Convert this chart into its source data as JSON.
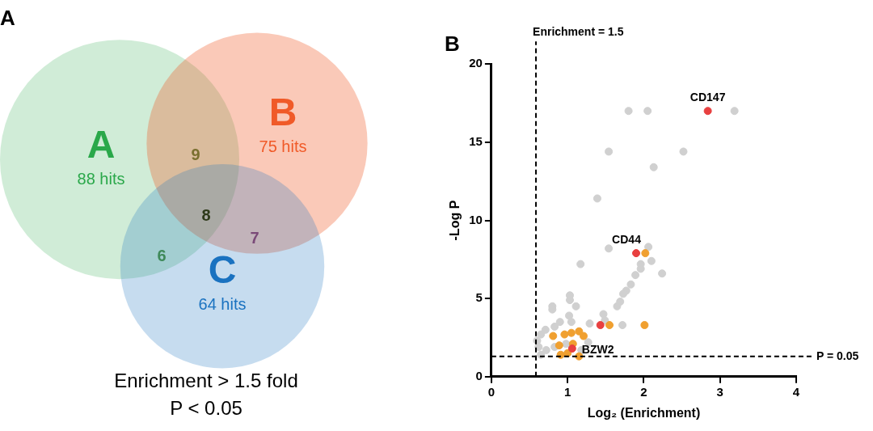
{
  "chart_data": [
    {
      "type": "other",
      "title": "A",
      "categories": [
        "A",
        "B",
        "C"
      ],
      "values": [
        88,
        75,
        64
      ],
      "value_labels": [
        "88 hits",
        "75 hits",
        "64 hits"
      ],
      "colors": [
        "#2aa84a",
        "#f05a28",
        "#1a72c0"
      ],
      "annotations": [
        "9",
        "6",
        "7",
        "8",
        "Enrichment > 1.5 fold",
        "P < 0.05"
      ]
    },
    {
      "type": "scatter",
      "title": "B",
      "xlabel": "Log₂ (Enrichment)",
      "ylabel": "-Log P",
      "xlim": [
        0,
        4
      ],
      "xticks": [
        0,
        1,
        2,
        3,
        4
      ],
      "ylim": [
        0,
        20
      ],
      "yticks": [
        0,
        5,
        10,
        15,
        20
      ],
      "grid": false,
      "legend": false,
      "marker": "circle",
      "series": [
        {
          "color": "#d0d0d0",
          "x": [
            1.8,
            2.05,
            3.19,
            1.54,
            2.52,
            2.13,
            1.39,
            1.54,
            2.06,
            2.1,
            1.17,
            1.96,
            1.96,
            1.89,
            2.24,
            1.83,
            1.77,
            1.73,
            1.69,
            1.65,
            1.03,
            1.11,
            1.03,
            0.8,
            0.8,
            1.47,
            1.49,
            1.02,
            1.05,
            1.29,
            1.72,
            0.9,
            0.83,
            0.71,
            0.65,
            0.6,
            0.62,
            0.65,
            0.72,
            0.83,
            0.98,
            1.27,
            1.18
          ],
          "values": [
            17.0,
            17.0,
            17.0,
            14.4,
            14.4,
            13.4,
            11.4,
            8.2,
            8.3,
            7.4,
            7.2,
            7.2,
            6.9,
            6.5,
            6.6,
            5.9,
            5.5,
            5.3,
            4.8,
            4.5,
            5.2,
            4.5,
            4.9,
            4.5,
            4.3,
            4.0,
            3.6,
            3.9,
            3.5,
            3.4,
            3.3,
            3.5,
            3.2,
            3.0,
            2.7,
            2.3,
            1.9,
            1.4,
            1.7,
            1.9,
            2.1,
            2.2,
            1.7
          ]
        },
        {
          "color": "#f0a030",
          "x": [
            2.02,
            1.55,
            2.01,
            0.81,
            0.89,
            0.91,
            0.96,
            1.05,
            1.07,
            1.0,
            1.15,
            1.21,
            1.15
          ],
          "values": [
            7.9,
            3.3,
            3.3,
            2.6,
            2.0,
            1.4,
            2.7,
            2.8,
            2.1,
            1.5,
            2.9,
            2.6,
            1.3
          ]
        },
        {
          "color": "#e84040",
          "x": [
            2.84,
            1.9,
            1.43,
            1.06
          ],
          "values": [
            17.0,
            7.9,
            3.3,
            1.8
          ]
        }
      ],
      "ref_lines": [
        {
          "axis": "x",
          "value": 0.585,
          "line_style": "dashed"
        },
        {
          "axis": "y",
          "value": 1.301,
          "line_style": "dashed"
        }
      ],
      "annotations": [
        "Enrichment = 1.5",
        "P = 0.05",
        {
          "text": "CD147",
          "x": 2.84,
          "y": 17.0
        },
        {
          "text": "CD44",
          "x": 1.9,
          "y": 7.9
        },
        {
          "text": "BZW2",
          "x": 1.06,
          "y": 1.8
        }
      ]
    }
  ]
}
